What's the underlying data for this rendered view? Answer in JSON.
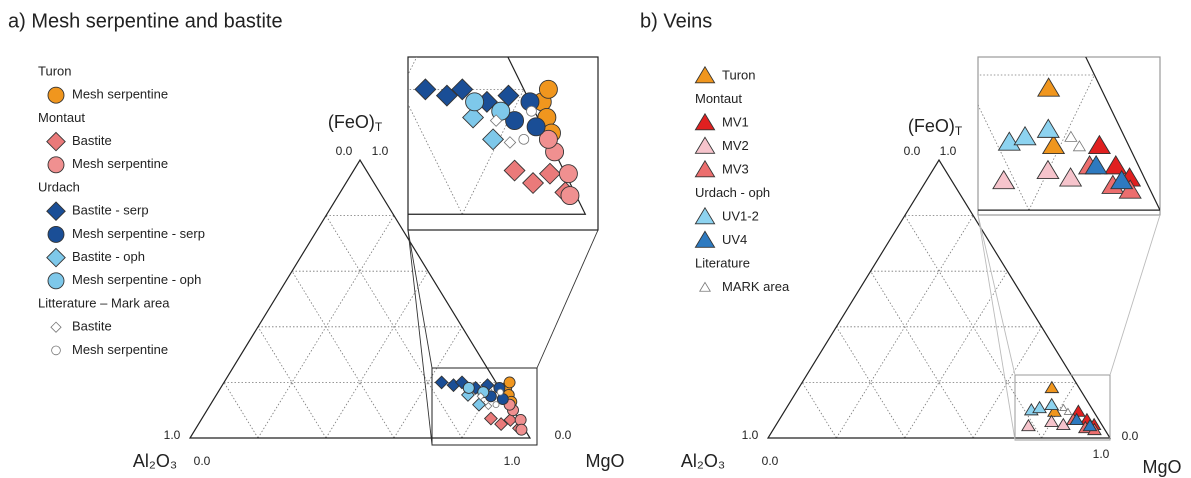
{
  "chart_data": [
    {
      "type": "ternary",
      "title": "a) Mesh serpentine and bastite",
      "apex_label": "(FeO)",
      "apex_label_sub": "T",
      "left_label": "Al₂O₃",
      "right_label": "MgO",
      "corner_ticks": [
        {
          "value": 0,
          "label": "0.0"
        },
        {
          "value": 1,
          "label": "1.0"
        },
        {
          "value": 1,
          "label": "1.0"
        },
        {
          "value": 0,
          "label": "0.0"
        },
        {
          "value": 1,
          "label": "1.0"
        },
        {
          "value": 0,
          "label": "0.0"
        }
      ],
      "gridlines": [
        0.2,
        0.4,
        0.6,
        0.8
      ],
      "series": [
        {
          "group": "Turon",
          "name": "Mesh serpentine",
          "marker": "circle",
          "color": "#f0961e",
          "mgo": [
            0.84,
            0.86,
            0.88,
            0.84
          ],
          "feo": [
            0.18,
            0.155,
            0.13,
            0.2
          ]
        },
        {
          "group": "Montaut",
          "name": "Bastite",
          "marker": "diamond",
          "color": "#ea7a7a",
          "mgo": [
            0.85,
            0.89,
            0.91,
            0.95
          ],
          "feo": [
            0.07,
            0.05,
            0.065,
            0.035
          ]
        },
        {
          "name": "Mesh serpentine",
          "marker": "circle",
          "color": "#f09090",
          "mgo": [
            0.9,
            0.94,
            0.96,
            0.88
          ],
          "feo": [
            0.1,
            0.065,
            0.03,
            0.12
          ]
        },
        {
          "group": "Urdach",
          "name": "Bastite - serp",
          "marker": "diamond",
          "color": "#1a4e96",
          "mgo": [
            0.64,
            0.68,
            0.7,
            0.75,
            0.78
          ],
          "feo": [
            0.2,
            0.19,
            0.2,
            0.18,
            0.19
          ]
        },
        {
          "name": "Mesh serpentine - serp",
          "marker": "circle",
          "color": "#1a4e96",
          "mgo": [
            0.81,
            0.82,
            0.85
          ],
          "feo": [
            0.15,
            0.18,
            0.14
          ]
        },
        {
          "name": "Bastite - oph",
          "marker": "diamond",
          "color": "#7ec8ea",
          "mgo": [
            0.79,
            0.74
          ],
          "feo": [
            0.12,
            0.155
          ]
        },
        {
          "name": "Mesh serpentine - oph",
          "marker": "circle",
          "color": "#7ec8ea",
          "mgo": [
            0.78,
            0.73
          ],
          "feo": [
            0.165,
            0.18
          ]
        },
        {
          "group": "Litterature – Mark area",
          "name": "Bastite",
          "marker": "small-diamond",
          "color": "#ffffff",
          "mgo": [
            0.78,
            0.82
          ],
          "feo": [
            0.15,
            0.115
          ]
        },
        {
          "name": "Mesh serpentine",
          "marker": "small-circle",
          "color": "#ffffff",
          "mgo": [
            0.83,
            0.84
          ],
          "feo": [
            0.165,
            0.12
          ]
        }
      ]
    },
    {
      "type": "ternary",
      "title": "b) Veins",
      "apex_label": "(FeO)",
      "apex_label_sub": "T",
      "left_label": "Al₂O₃",
      "right_label": "MgO",
      "corner_ticks": [
        {
          "value": 0,
          "label": "0.0"
        },
        {
          "value": 1,
          "label": "1.0"
        },
        {
          "value": 1,
          "label": "1.0"
        },
        {
          "value": 0,
          "label": "0.0"
        },
        {
          "value": 1,
          "label": "1.0"
        },
        {
          "value": 0,
          "label": "0.0"
        }
      ],
      "gridlines": [
        0.2,
        0.4,
        0.6,
        0.8
      ],
      "series": [
        {
          "name": "Turon",
          "marker": "triangle",
          "color": "#f0961e",
          "mgo": [
            0.74,
            0.79
          ],
          "feo": [
            0.18,
            0.095
          ]
        },
        {
          "group": "Montaut",
          "name": "MV1",
          "marker": "triangle",
          "color": "#e02020",
          "mgo": [
            0.86,
            0.9,
            0.93
          ],
          "feo": [
            0.095,
            0.065,
            0.047
          ]
        },
        {
          "name": "MV2",
          "marker": "triangle",
          "color": "#f6c4cc",
          "mgo": [
            0.74,
            0.8,
            0.84
          ],
          "feo": [
            0.043,
            0.058,
            0.047
          ]
        },
        {
          "name": "MV3",
          "marker": "triangle",
          "color": "#ec6e6e",
          "mgo": [
            0.86,
            0.91,
            0.94
          ],
          "feo": [
            0.065,
            0.036,
            0.029
          ]
        },
        {
          "group": "Urdach - oph",
          "name": "UV1-2",
          "marker": "triangle",
          "color": "#8dd3f0",
          "mgo": [
            0.72,
            0.74,
            0.77
          ],
          "feo": [
            0.1,
            0.108,
            0.119
          ]
        },
        {
          "name": "UV4",
          "marker": "triangle",
          "color": "#2e7ac0",
          "mgo": [
            0.87,
            0.92
          ],
          "feo": [
            0.065,
            0.043
          ]
        },
        {
          "group": "Literature",
          "name": "MARK area",
          "marker": "small-triangle",
          "color": "#ffffff",
          "mgo": [
            0.81,
            0.83
          ],
          "feo": [
            0.108,
            0.094
          ]
        }
      ]
    }
  ]
}
